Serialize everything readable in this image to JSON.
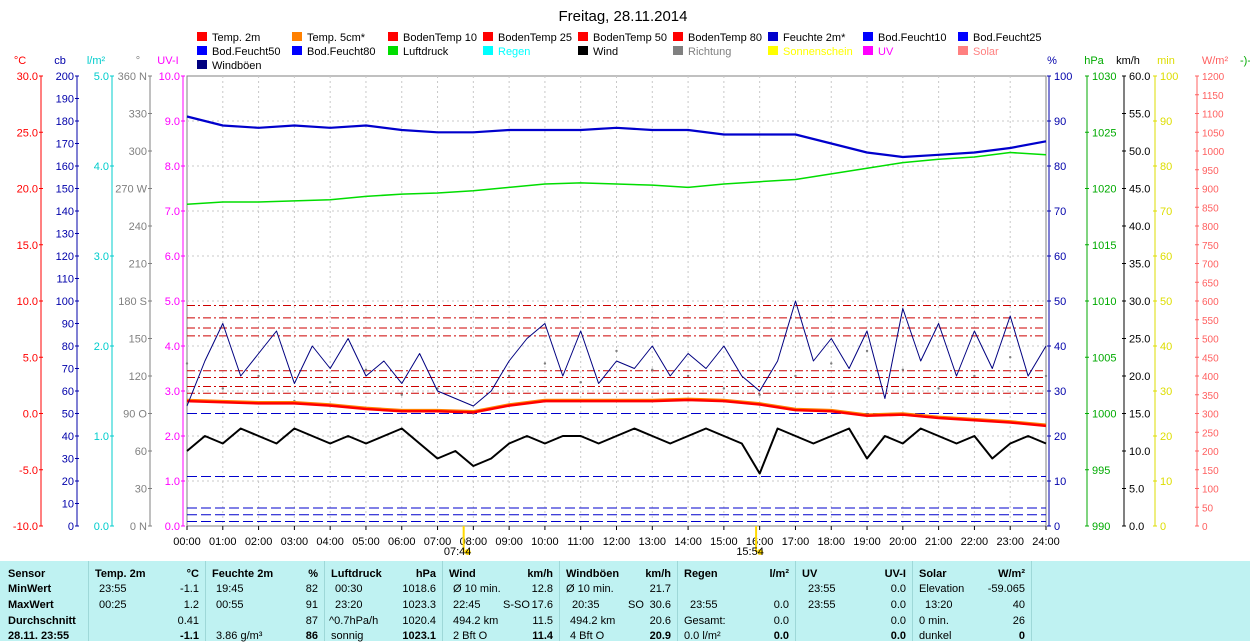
{
  "chart_data": {
    "type": "line",
    "title": "Freitag, 28.11.2014",
    "legend": [
      {
        "label": "Temp. 2m",
        "color": "#ff0000"
      },
      {
        "label": "Temp. 5cm*",
        "color": "#ff8000"
      },
      {
        "label": "BodenTemp 10",
        "color": "#ff0000"
      },
      {
        "label": "BodenTemp 25",
        "color": "#ff0000"
      },
      {
        "label": "BodenTemp 50",
        "color": "#ff0000"
      },
      {
        "label": "BodenTemp 80",
        "color": "#ff0000"
      },
      {
        "label": "Feuchte 2m*",
        "color": "#0000cc"
      },
      {
        "label": "Bod.Feucht10",
        "color": "#0000ff"
      },
      {
        "label": "Bod.Feucht25",
        "color": "#0000ff"
      },
      {
        "label": "Bod.Feucht50",
        "color": "#0000ff"
      },
      {
        "label": "Bod.Feucht80",
        "color": "#0000ff"
      },
      {
        "label": "Luftdruck",
        "color": "#00dd00"
      },
      {
        "label": "Regen",
        "color": "#00ffff"
      },
      {
        "label": "Wind",
        "color": "#000000"
      },
      {
        "label": "Richtung",
        "color": "#808080"
      },
      {
        "label": "Sonnenschein",
        "color": "#ffff00"
      },
      {
        "label": "UV",
        "color": "#ff00ff"
      },
      {
        "label": "Solar",
        "color": "#ff8080"
      },
      {
        "label": "Windböen",
        "color": "#000080"
      }
    ],
    "left_axes": [
      {
        "unit": "°C",
        "color": "#ff0000",
        "min": -10,
        "max": 30,
        "ticks": [
          "-10.0",
          "-5.0",
          "0.0",
          "5.0",
          "10.0",
          "15.0",
          "20.0",
          "25.0",
          "30.0"
        ]
      },
      {
        "unit": "cb",
        "color": "#0000aa",
        "min": 0,
        "max": 200,
        "ticks": [
          "0",
          "10",
          "20",
          "30",
          "40",
          "50",
          "60",
          "70",
          "80",
          "90",
          "100",
          "110",
          "120",
          "130",
          "140",
          "150",
          "160",
          "170",
          "180",
          "190",
          "200"
        ]
      },
      {
        "unit": "l/m²",
        "color": "#00cccc",
        "min": 0,
        "max": 5,
        "ticks": [
          "0.0",
          "1.0",
          "2.0",
          "3.0",
          "4.0",
          "5.0"
        ]
      },
      {
        "unit": "°",
        "color": "#808080",
        "min": 0,
        "max": 360,
        "ticks": [
          "0 N",
          "30",
          "60",
          "90 O",
          "120",
          "150",
          "180 S",
          "210",
          "240",
          "270 W",
          "300",
          "330",
          "360 N"
        ]
      },
      {
        "unit": "UV-I",
        "color": "#ff00ff",
        "min": 0,
        "max": 10,
        "ticks": [
          "0.0",
          "1.0",
          "2.0",
          "3.0",
          "4.0",
          "5.0",
          "6.0",
          "7.0",
          "8.0",
          "9.0",
          "10.0"
        ]
      }
    ],
    "right_axes": [
      {
        "unit": "%",
        "color": "#0000aa",
        "min": 0,
        "max": 100,
        "ticks": [
          "0",
          "10",
          "20",
          "30",
          "40",
          "50",
          "60",
          "70",
          "80",
          "90",
          "100"
        ]
      },
      {
        "unit": "hPa",
        "color": "#00aa00",
        "min": 990,
        "max": 1030,
        "ticks": [
          "990",
          "995",
          "1000",
          "1005",
          "1010",
          "1015",
          "1020",
          "1025",
          "1030"
        ]
      },
      {
        "unit": "km/h",
        "color": "#000000",
        "min": 0,
        "max": 60,
        "ticks": [
          "0.0",
          "5.0",
          "10.0",
          "15.0",
          "20.0",
          "25.0",
          "30.0",
          "35.0",
          "40.0",
          "45.0",
          "50.0",
          "55.0",
          "60.0"
        ]
      },
      {
        "unit": "min",
        "color": "#dddd00",
        "min": 0,
        "max": 100,
        "ticks": [
          "0",
          "10",
          "20",
          "30",
          "40",
          "50",
          "60",
          "70",
          "80",
          "90",
          "100"
        ]
      },
      {
        "unit": "W/m²",
        "color": "#ff6060",
        "min": 0,
        "max": 1200,
        "ticks": [
          "0",
          "50",
          "100",
          "150",
          "200",
          "250",
          "300",
          "350",
          "400",
          "450",
          "500",
          "550",
          "600",
          "650",
          "700",
          "750",
          "800",
          "850",
          "900",
          "950",
          "1000",
          "1050",
          "1100",
          "1150",
          "1200"
        ]
      }
    ],
    "extra_axis_label": "-)-",
    "x_ticks": [
      "00:00",
      "01:00",
      "02:00",
      "03:00",
      "04:00",
      "05:00",
      "06:00",
      "07:00",
      "08:00",
      "09:00",
      "10:00",
      "11:00",
      "12:00",
      "13:00",
      "14:00",
      "15:00",
      "16:00",
      "17:00",
      "18:00",
      "19:00",
      "20:00",
      "21:00",
      "22:00",
      "23:00",
      "24:00"
    ],
    "sun_markers": [
      {
        "time": "07:44",
        "hour": 7.73
      },
      {
        "time": "15:54",
        "hour": 15.9
      }
    ],
    "series": [
      {
        "name": "Feuchte 2m*",
        "axis": "%",
        "color": "#0000cc",
        "x": [
          0,
          1,
          2,
          3,
          4,
          5,
          6,
          7,
          8,
          9,
          10,
          11,
          12,
          13,
          14,
          15,
          16,
          17,
          18,
          19,
          20,
          21,
          22,
          23,
          24
        ],
        "y": [
          91,
          89,
          88.5,
          89,
          88.5,
          89,
          88,
          87.5,
          87.5,
          88,
          88,
          88,
          88.5,
          88,
          88,
          87,
          87,
          87,
          85,
          83,
          82,
          82.5,
          83,
          84,
          85.5
        ]
      },
      {
        "name": "Luftdruck",
        "axis": "hPa",
        "color": "#00dd00",
        "x": [
          0,
          1,
          2,
          3,
          4,
          5,
          6,
          7,
          8,
          9,
          10,
          11,
          12,
          13,
          14,
          15,
          16,
          17,
          18,
          19,
          20,
          21,
          22,
          23,
          24
        ],
        "y": [
          1018.6,
          1018.8,
          1018.8,
          1018.9,
          1019.0,
          1019.3,
          1019.5,
          1019.6,
          1019.8,
          1020.1,
          1020.4,
          1020.5,
          1020.4,
          1020.3,
          1020.1,
          1020.4,
          1020.6,
          1020.8,
          1021.3,
          1021.8,
          1022.3,
          1022.6,
          1022.8,
          1023.2,
          1023.0
        ]
      },
      {
        "name": "Temp. 2m",
        "axis": "°C",
        "color": "#ff0000",
        "x": [
          0,
          1,
          2,
          3,
          4,
          5,
          6,
          7,
          8,
          9,
          10,
          11,
          12,
          13,
          14,
          15,
          16,
          17,
          18,
          19,
          20,
          21,
          22,
          23,
          24
        ],
        "y": [
          1.1,
          1.0,
          0.9,
          0.9,
          0.7,
          0.4,
          0.2,
          0.2,
          0.1,
          0.7,
          1.1,
          1.1,
          1.1,
          1.1,
          1.2,
          1.1,
          0.8,
          0.3,
          0.2,
          -0.2,
          -0.1,
          -0.4,
          -0.6,
          -0.8,
          -1.1
        ]
      },
      {
        "name": "Temp. 5cm*",
        "axis": "°C",
        "color": "#ff8000",
        "x": [
          0,
          1,
          2,
          3,
          4,
          5,
          6,
          7,
          8,
          9,
          10,
          11,
          12,
          13,
          14,
          15,
          16,
          17,
          18,
          19,
          20,
          21,
          22,
          23,
          24
        ],
        "y": [
          1.2,
          1.1,
          1.0,
          1.0,
          0.8,
          0.5,
          0.3,
          0.3,
          0.2,
          0.8,
          1.2,
          1.2,
          1.2,
          1.2,
          1.3,
          1.2,
          0.9,
          0.4,
          0.3,
          -0.1,
          0.0,
          -0.3,
          -0.5,
          -0.7,
          -1.0
        ]
      },
      {
        "name": "Wind",
        "axis": "km/h",
        "color": "#000000",
        "x": [
          0,
          0.5,
          1,
          1.5,
          2,
          2.5,
          3,
          3.5,
          4,
          4.5,
          5,
          5.5,
          6,
          6.5,
          7,
          7.5,
          8,
          8.5,
          9,
          9.5,
          10,
          10.5,
          11,
          11.5,
          12,
          12.5,
          13,
          13.5,
          14,
          14.5,
          15,
          15.5,
          16,
          16.5,
          17,
          17.5,
          18,
          18.5,
          19,
          19.5,
          20,
          20.5,
          21,
          21.5,
          22,
          22.5,
          23,
          23.5,
          24
        ],
        "y": [
          10,
          12,
          11,
          13,
          12,
          11,
          13,
          12,
          11,
          12,
          11,
          12,
          13,
          11,
          9,
          10,
          8,
          9,
          11,
          12,
          11,
          12,
          12,
          11,
          12,
          13,
          12,
          11,
          12,
          13,
          12,
          11,
          7,
          13,
          12,
          11,
          12,
          13,
          9,
          12,
          11,
          13,
          12,
          11,
          12,
          9,
          11,
          12,
          11
        ]
      },
      {
        "name": "Windböen",
        "axis": "km/h",
        "color": "#000080",
        "x": [
          0,
          0.5,
          1,
          1.5,
          2,
          2.5,
          3,
          3.5,
          4,
          4.5,
          5,
          5.5,
          6,
          6.5,
          7,
          7.5,
          8,
          8.5,
          9,
          9.5,
          10,
          10.5,
          11,
          11.5,
          12,
          12.5,
          13,
          13.5,
          14,
          14.5,
          15,
          15.5,
          16,
          16.5,
          17,
          17.5,
          18,
          18.5,
          19,
          19.5,
          20,
          20.5,
          21,
          21.5,
          22,
          22.5,
          23,
          23.5,
          24
        ],
        "y": [
          16,
          22,
          27,
          20,
          23,
          26,
          19,
          24,
          21,
          25,
          20,
          22,
          19,
          23,
          18,
          17,
          16,
          18,
          22,
          25,
          27,
          20,
          26,
          19,
          22,
          21,
          24,
          20,
          23,
          21,
          24,
          20,
          18,
          22,
          30,
          22,
          25,
          21,
          26,
          17,
          29,
          22,
          27,
          20,
          26,
          21,
          28,
          20,
          24
        ]
      },
      {
        "name": "Richtung",
        "axis": "°",
        "color": "#808080",
        "x": [
          0,
          1,
          2,
          3,
          4,
          5,
          6,
          7,
          8,
          9,
          10,
          11,
          12,
          13,
          14,
          15,
          16,
          17,
          18,
          19,
          20,
          21,
          22,
          23,
          24
        ],
        "y": [
          130,
          110,
          120,
          100,
          115,
          125,
          105,
          110,
          90,
          120,
          130,
          115,
          140,
          125,
          120,
          110,
          105,
          120,
          130,
          140,
          125,
          110,
          120,
          135,
          120
        ]
      }
    ],
    "reference_lines": [
      {
        "axis": "°C",
        "values": [
          9.6,
          8.5,
          7.6,
          6.9,
          3.8,
          3.2,
          2.4,
          1.8
        ],
        "color": "#cc0000",
        "style": "dashdot"
      },
      {
        "axis": "cb",
        "values": [
          2,
          5,
          8,
          22,
          50
        ],
        "color": "#0000cc",
        "style": "dash"
      }
    ],
    "grid": true
  },
  "summary": {
    "row_labels": {
      "sensor": "Sensor",
      "min": "MinWert",
      "max": "MaxWert",
      "avg": "Durchschnitt",
      "cur": "28.11. 23:55"
    },
    "temp": {
      "header": "Temp. 2m",
      "unit": "°C",
      "min_time": "23:55",
      "min": "-1.1",
      "max_time": "00:25",
      "max": "1.2",
      "avg": "0.41",
      "cur": "-1.1"
    },
    "feuchte": {
      "header": "Feuchte 2m",
      "unit": "%",
      "min_time": "19:45",
      "min": "82",
      "max_time": "00:55",
      "max": "91",
      "avg": "87",
      "cur_extra": "3.86 g/m³",
      "cur": "86"
    },
    "luftdruck": {
      "header": "Luftdruck",
      "unit": "hPa",
      "min_time": "00:30",
      "min": "1018.6",
      "max_time": "23:20",
      "max": "1023.3",
      "avg_label": "^0.7hPa/h",
      "avg": "1020.4",
      "cur_extra": "sonnig",
      "cur": "1023.1"
    },
    "wind": {
      "header": "Wind",
      "unit": "km/h",
      "r1_label": "Ø 10 min.",
      "r1": "12.8",
      "r2_time": "22:45",
      "r2_dir": "S-SO",
      "r2": "17.6",
      "r3_label": "494.2 km",
      "r3": "11.5",
      "cur_extra": "2 Bft O",
      "cur": "11.4"
    },
    "boeen": {
      "header": "Windböen",
      "unit": "km/h",
      "r1_label": "Ø 10 min.",
      "r1": "21.7",
      "r2_time": "20:35",
      "r2_dir": "SO",
      "r2": "30.6",
      "r3_label": "494.2 km",
      "r3": "20.6",
      "cur_extra": "4 Bft O",
      "cur": "20.9"
    },
    "regen": {
      "header": "Regen",
      "unit": "l/m²",
      "max_time": "23:55",
      "max": "0.0",
      "avg_label": "Gesamt:",
      "avg": "0.0",
      "cur_extra": "0.0 l/m²",
      "cur": "0.0"
    },
    "uv": {
      "header": "UV",
      "unit": "UV-I",
      "min_time": "23:55",
      "min": "0.0",
      "max_time": "23:55",
      "max": "0.0",
      "avg": "0.0",
      "cur": "0.0"
    },
    "solar": {
      "header": "Solar",
      "unit": "W/m²",
      "r1_label": "Elevation",
      "r1": "-59.065",
      "r2_time": "13:20",
      "r2": "40",
      "r3_label": "0 min.",
      "r3": "26",
      "cur_extra": "dunkel",
      "cur": "0"
    }
  }
}
